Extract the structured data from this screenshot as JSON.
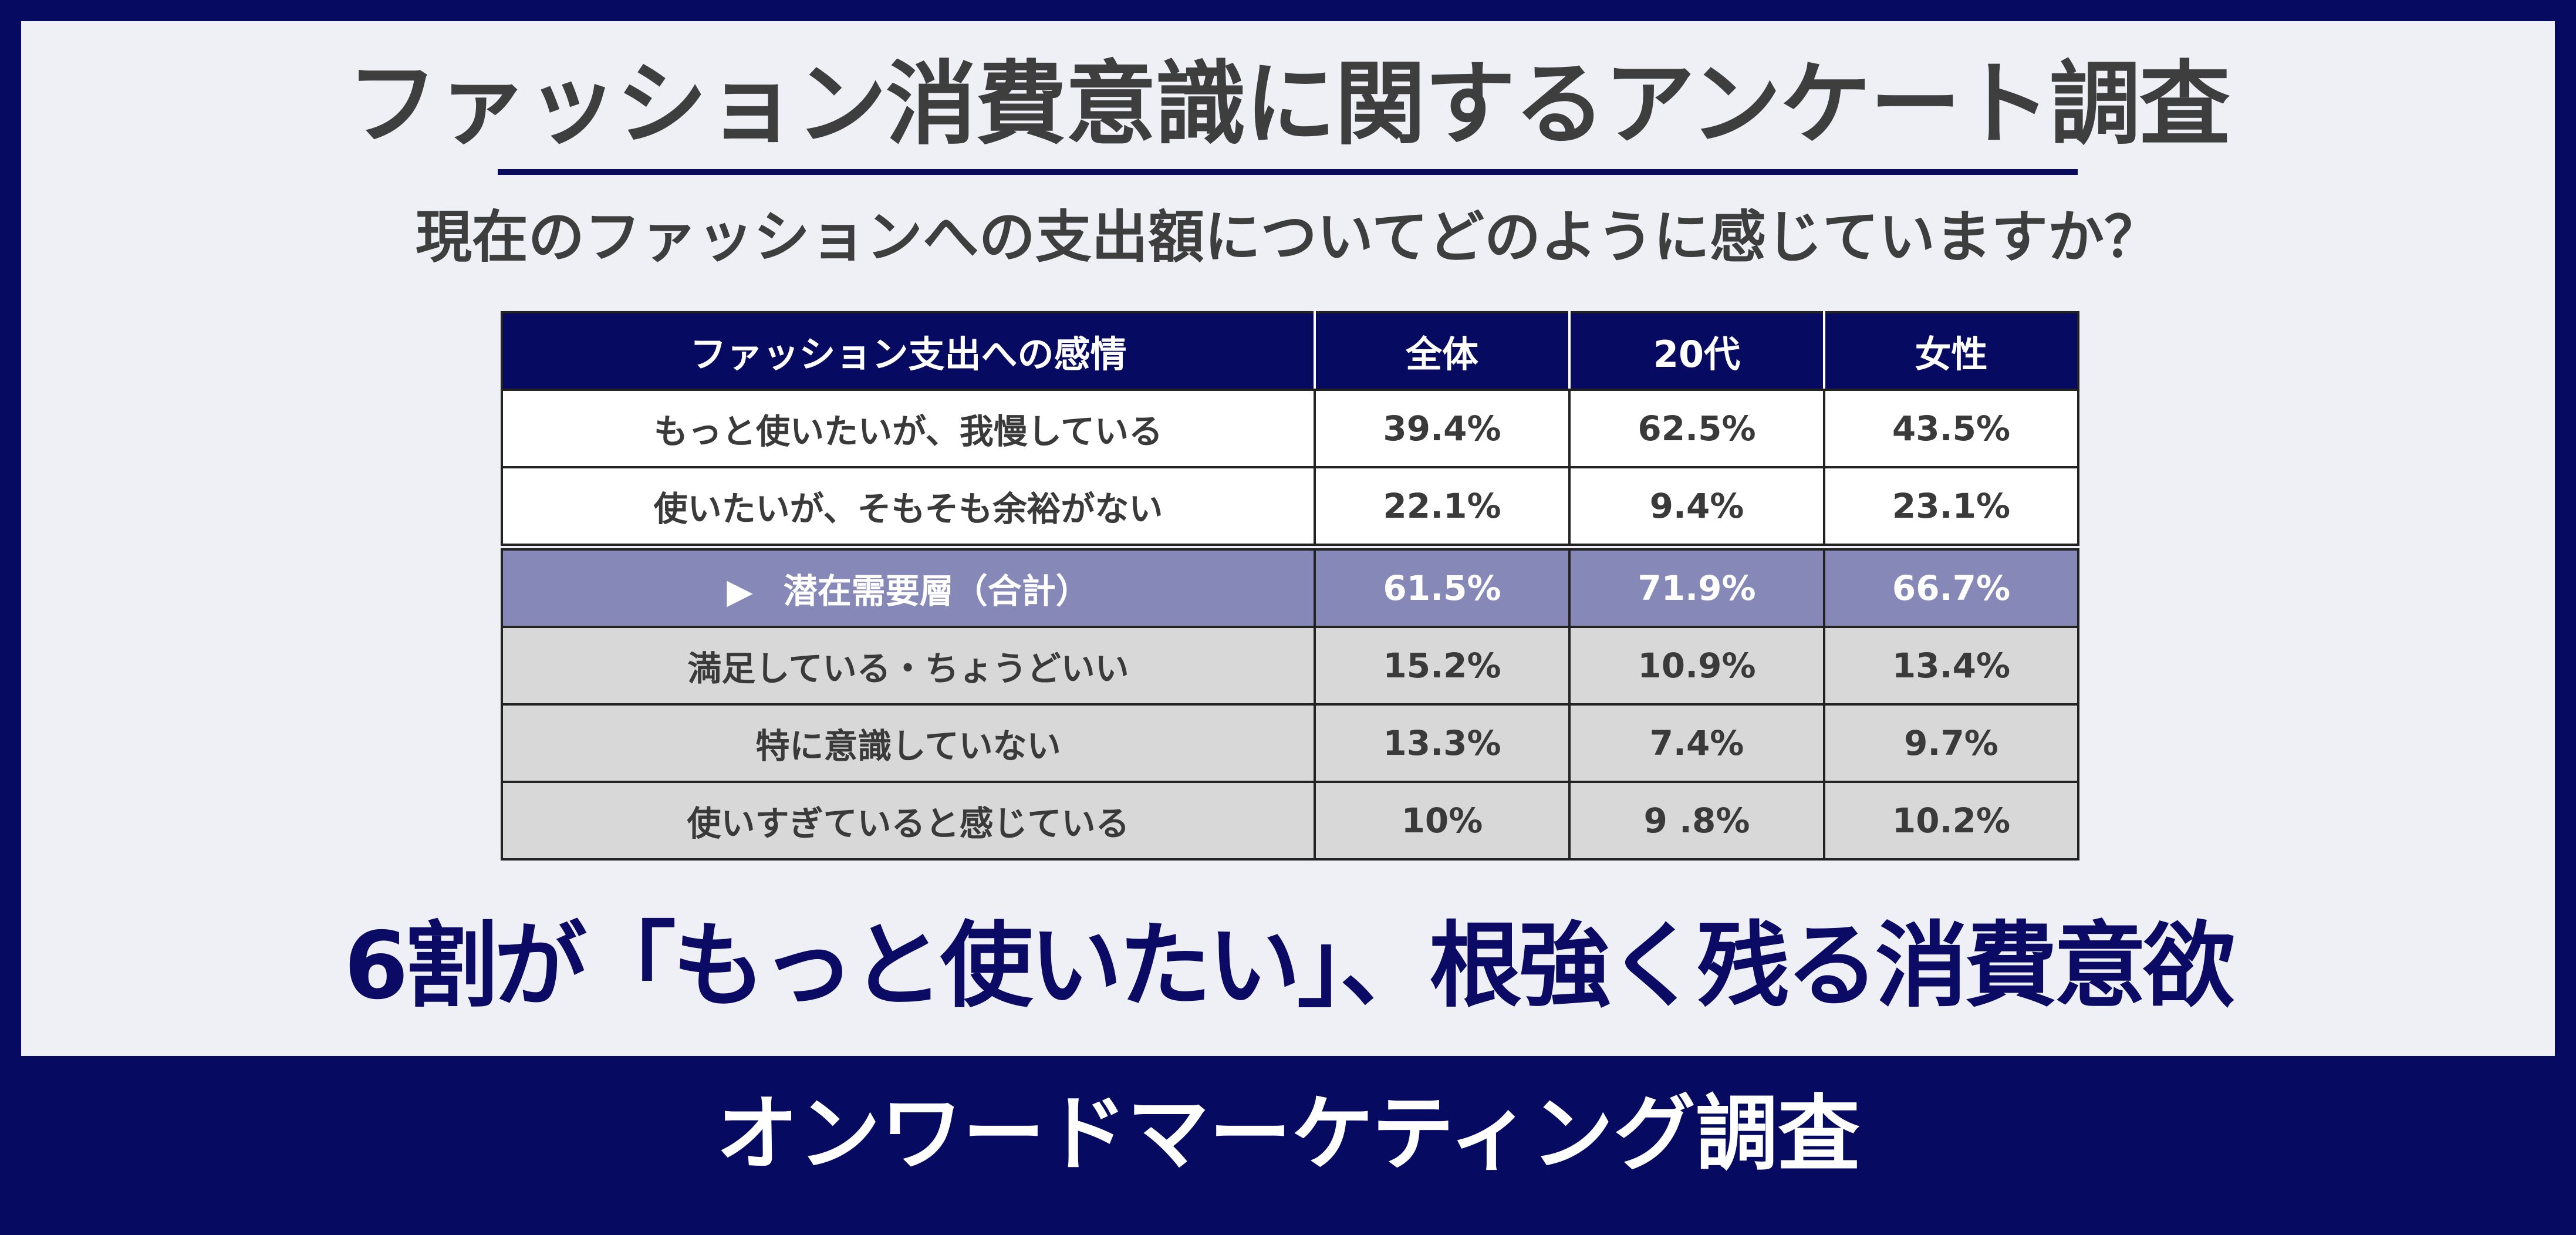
{
  "title": "ファッション消費意識に関するアンケート調査",
  "question": "現在のファッションへの支出額についてどのように感じていますか？",
  "table": {
    "headers": [
      "ファッション支出への感情",
      "全体",
      "20代",
      "女性"
    ],
    "rows": [
      {
        "label": "もっと使いたいが、我慢している",
        "values": [
          "39.4%",
          "62.5%",
          "43.5%"
        ],
        "style": "white"
      },
      {
        "label": "使いたいが、そもそも余裕がない",
        "values": [
          "22.1%",
          "9.4%",
          "23.1%"
        ],
        "style": "white"
      },
      {
        "label": "潜在需要層（合計）",
        "marker": "▶",
        "values": [
          "61.5%",
          "71.9%",
          "66.7%"
        ],
        "style": "total"
      },
      {
        "label": "満足している・ちょうどいい",
        "values": [
          "15.2%",
          "10.9%",
          "13.4%"
        ],
        "style": "gray"
      },
      {
        "label": "特に意識していない",
        "values": [
          "13.3%",
          "7.4%",
          "9.7%"
        ],
        "style": "gray"
      },
      {
        "label": "使いすぎていると感じている",
        "values": [
          "10%",
          "9 .8%",
          "10.2%"
        ],
        "style": "gray"
      }
    ]
  },
  "conclusion": "6割が「もっと使いたい」、根強く残る消費意欲",
  "footer": "オンワードマーケティング調査",
  "colors": {
    "navy": "#060a60",
    "panel": "#eff0f5",
    "total_row": "#8688b8",
    "gray_row": "#d8d8d8",
    "text": "#3e3e3e",
    "accent_text": "#0b0b66"
  }
}
